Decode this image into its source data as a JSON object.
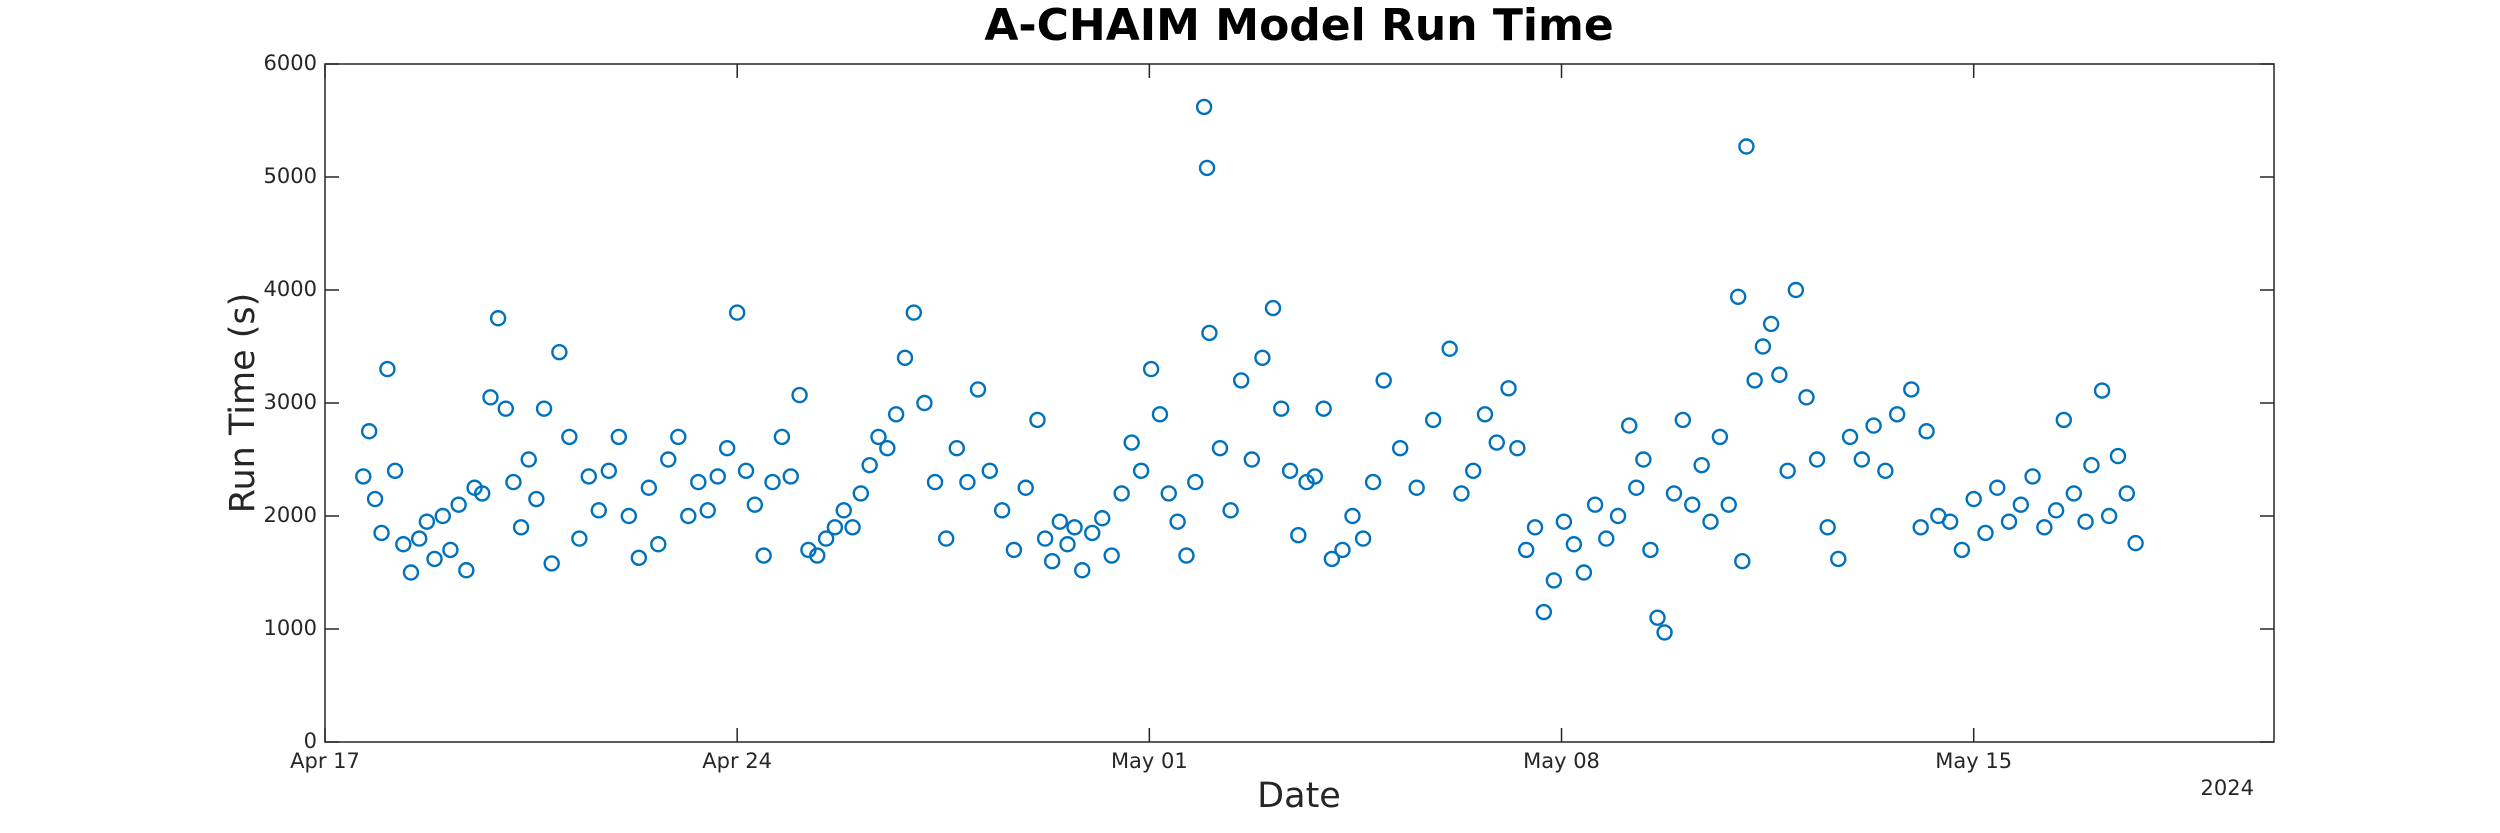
{
  "chart_data": {
    "type": "scatter",
    "title": "A-CHAIM Model Run Time",
    "xlabel": "Date",
    "ylabel": "Run Time (s)",
    "xaxis_year_label": "2024",
    "color": "#0072bd",
    "marker": "circle",
    "grid": false,
    "xlim": [
      0,
      33.1
    ],
    "ylim": [
      0,
      6000
    ],
    "xticks": [
      {
        "value": 0,
        "label": "Apr 17"
      },
      {
        "value": 7,
        "label": "Apr 24"
      },
      {
        "value": 14,
        "label": "May 01"
      },
      {
        "value": 21,
        "label": "May 08"
      },
      {
        "value": 28,
        "label": "May 15"
      }
    ],
    "yticks": [
      0,
      1000,
      2000,
      3000,
      4000,
      5000,
      6000
    ],
    "x": [
      0.65,
      0.75,
      0.85,
      0.96,
      1.06,
      1.19,
      1.33,
      1.46,
      1.6,
      1.73,
      1.86,
      2.0,
      2.13,
      2.27,
      2.4,
      2.54,
      2.67,
      2.81,
      2.94,
      3.07,
      3.2,
      3.33,
      3.46,
      3.59,
      3.72,
      3.85,
      3.98,
      4.15,
      4.32,
      4.48,
      4.65,
      4.82,
      4.99,
      5.16,
      5.33,
      5.5,
      5.66,
      5.83,
      6.0,
      6.17,
      6.34,
      6.5,
      6.67,
      6.83,
      7.0,
      7.15,
      7.3,
      7.45,
      7.6,
      7.76,
      7.91,
      8.06,
      8.21,
      8.36,
      8.51,
      8.66,
      8.81,
      8.96,
      9.1,
      9.25,
      9.4,
      9.55,
      9.7,
      9.85,
      10.0,
      10.18,
      10.36,
      10.55,
      10.73,
      10.91,
      11.09,
      11.29,
      11.5,
      11.7,
      11.9,
      12.1,
      12.23,
      12.35,
      12.48,
      12.61,
      12.73,
      12.86,
      13.03,
      13.2,
      13.36,
      13.53,
      13.7,
      13.86,
      14.03,
      14.18,
      14.33,
      14.48,
      14.63,
      14.78,
      14.93,
      14.98,
      15.02,
      15.2,
      15.38,
      15.56,
      15.74,
      15.92,
      16.1,
      16.24,
      16.39,
      16.53,
      16.67,
      16.81,
      16.96,
      17.1,
      17.28,
      17.45,
      17.63,
      17.8,
      17.98,
      18.26,
      18.54,
      18.82,
      19.1,
      19.3,
      19.5,
      19.7,
      19.9,
      20.1,
      20.25,
      20.4,
      20.55,
      20.7,
      20.87,
      21.04,
      21.21,
      21.38,
      21.57,
      21.76,
      21.96,
      22.15,
      22.27,
      22.39,
      22.51,
      22.63,
      22.75,
      22.91,
      23.06,
      23.22,
      23.38,
      23.53,
      23.69,
      23.84,
      24.0,
      24.07,
      24.14,
      24.28,
      24.42,
      24.56,
      24.7,
      24.84,
      24.98,
      25.16,
      25.34,
      25.52,
      25.7,
      25.9,
      26.1,
      26.3,
      26.5,
      26.7,
      26.94,
      27.1,
      27.2,
      27.4,
      27.6,
      27.8,
      28.0,
      28.2,
      28.4,
      28.6,
      28.8,
      29.0,
      29.2,
      29.4,
      29.53,
      29.7,
      29.9,
      30.0,
      30.18,
      30.3,
      30.45,
      30.6,
      30.75
    ],
    "values": [
      2350,
      2750,
      2150,
      1850,
      3300,
      2400,
      1750,
      1500,
      1800,
      1950,
      1620,
      2000,
      1700,
      2100,
      1520,
      2250,
      2200,
      3050,
      3750,
      2950,
      2300,
      1900,
      2500,
      2150,
      2950,
      1580,
      3450,
      2700,
      1800,
      2350,
      2050,
      2400,
      2700,
      2000,
      1630,
      2250,
      1750,
      2500,
      2700,
      2000,
      2300,
      2050,
      2350,
      2600,
      3800,
      2400,
      2100,
      1650,
      2300,
      2700,
      2350,
      3070,
      1700,
      1650,
      1800,
      1900,
      2050,
      1900,
      2200,
      2450,
      2700,
      2600,
      2900,
      3400,
      3800,
      3000,
      2300,
      1800,
      2600,
      2300,
      3120,
      2400,
      2050,
      1700,
      2250,
      2850,
      1800,
      1600,
      1950,
      1750,
      1900,
      1520,
      1850,
      1980,
      1650,
      2200,
      2650,
      2400,
      3300,
      2900,
      2200,
      1950,
      1650,
      2300,
      5620,
      5080,
      3620,
      2600,
      2050,
      3200,
      2500,
      3400,
      3840,
      2950,
      2400,
      1830,
      2300,
      2350,
      2950,
      1620,
      1700,
      2000,
      1800,
      2300,
      3200,
      2600,
      2250,
      2850,
      3480,
      2200,
      2400,
      2900,
      2650,
      3130,
      2600,
      1700,
      1900,
      1150,
      1430,
      1950,
      1750,
      1500,
      2100,
      1800,
      2000,
      2800,
      2250,
      2500,
      1700,
      1100,
      970,
      2200,
      2850,
      2100,
      2450,
      1950,
      2700,
      2100,
      3940,
      1600,
      5270,
      3200,
      3500,
      3700,
      3250,
      2400,
      4000,
      3050,
      2500,
      1900,
      1620,
      2700,
      2500,
      2800,
      2400,
      2900,
      3120,
      1900,
      2750,
      2000,
      1950,
      1700,
      2150,
      1850,
      2250,
      1950,
      2100,
      2350,
      1900,
      2050,
      2850,
      2200,
      1950,
      2450,
      3110,
      2000,
      2530,
      2200,
      1760
    ]
  }
}
